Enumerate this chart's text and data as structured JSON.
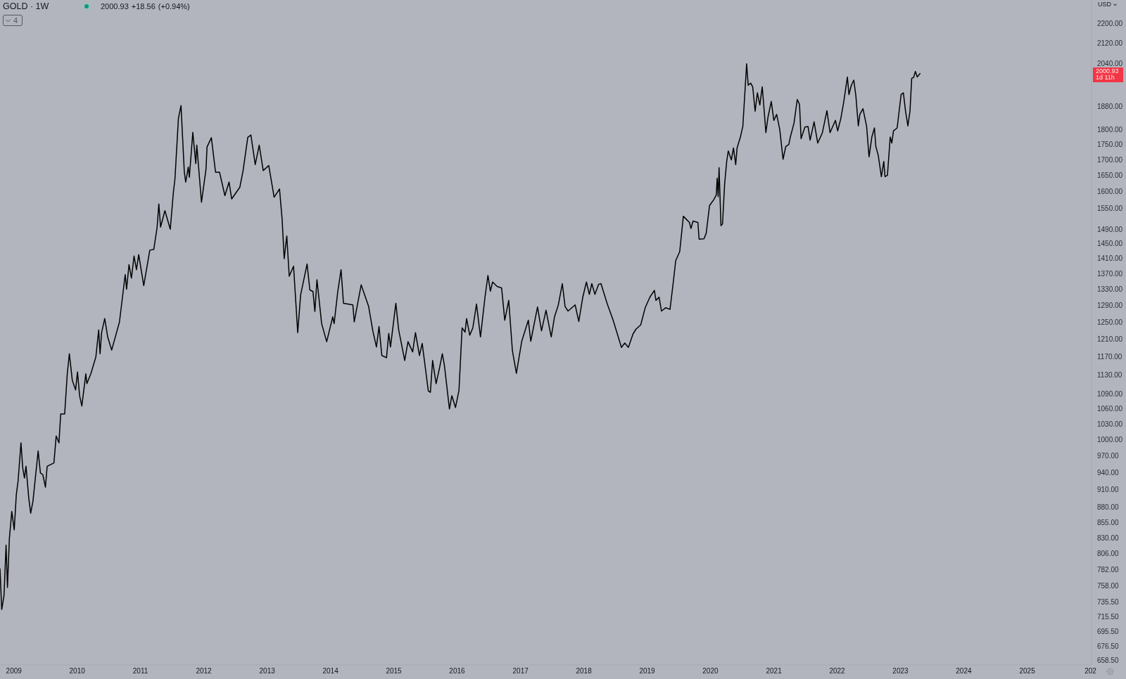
{
  "chart_data": {
    "type": "line",
    "title": "GOLD · 1W",
    "subtitle": "2000.93 +18.56 (+0.94%)",
    "ylabel": "USD",
    "annotations": [
      "2000.93",
      "1d 11h",
      "4"
    ],
    "log": true,
    "xlim": [
      "2008-10-13",
      "2026-01-07"
    ],
    "xticks": [
      "2009",
      "2010",
      "2011",
      "2012",
      "2013",
      "2014",
      "2015",
      "2016",
      "2017",
      "2018",
      "2019",
      "2020",
      "2021",
      "2022",
      "2023",
      "2024",
      "2025",
      {
        "value": "2026",
        "label": "202"
      }
    ],
    "ylim": [
      652.7,
      2300
    ],
    "yticks": [
      {
        "value": 658.5,
        "label": "658.50"
      },
      {
        "value": 676.5,
        "label": "676.50"
      },
      {
        "value": 695.5,
        "label": "695.50"
      },
      {
        "value": 715.5,
        "label": "715.50"
      },
      {
        "value": 735.5,
        "label": "735.50"
      },
      {
        "value": 758,
        "label": "758.00"
      },
      {
        "value": 782,
        "label": "782.00"
      },
      {
        "value": 806,
        "label": "806.00"
      },
      {
        "value": 830,
        "label": "830.00"
      },
      {
        "value": 855,
        "label": "855.00"
      },
      {
        "value": 880,
        "label": "880.00"
      },
      {
        "value": 910,
        "label": "910.00"
      },
      {
        "value": 940,
        "label": "940.00"
      },
      {
        "value": 970,
        "label": "970.00"
      },
      {
        "value": 1000,
        "label": "1000.00"
      },
      {
        "value": 1030,
        "label": "1030.00"
      },
      {
        "value": 1060,
        "label": "1060.00"
      },
      {
        "value": 1090,
        "label": "1090.00"
      },
      {
        "value": 1130,
        "label": "1130.00"
      },
      {
        "value": 1170,
        "label": "1170.00"
      },
      {
        "value": 1210,
        "label": "1210.00"
      },
      {
        "value": 1250,
        "label": "1250.00"
      },
      {
        "value": 1290,
        "label": "1290.00"
      },
      {
        "value": 1330,
        "label": "1330.00"
      },
      {
        "value": 1370,
        "label": "1370.00"
      },
      {
        "value": 1410,
        "label": "1410.00"
      },
      {
        "value": 1450,
        "label": "1450.00"
      },
      {
        "value": 1490,
        "label": "1490.00"
      },
      {
        "value": 1550,
        "label": "1550.00"
      },
      {
        "value": 1600,
        "label": "1600.00"
      },
      {
        "value": 1650,
        "label": "1650.00"
      },
      {
        "value": 1700,
        "label": "1700.00"
      },
      {
        "value": 1750,
        "label": "1750.00"
      },
      {
        "value": 1800,
        "label": "1800.00"
      },
      {
        "value": 1880,
        "label": "1880.00"
      },
      {
        "value": 2040,
        "label": "2040.00"
      },
      {
        "value": 2120,
        "label": "2120.00"
      },
      {
        "value": 2200,
        "label": "2200.00"
      }
    ],
    "x": [
      "2008-10-13",
      "2008-10-23",
      "2008-11-05",
      "2008-11-17",
      "2008-11-25",
      "2008-12-06",
      "2008-12-20",
      "2009-01-03",
      "2009-01-15",
      "2009-01-25",
      "2009-02-11",
      "2009-02-21",
      "2009-03-03",
      "2009-03-12",
      "2009-03-28",
      "2009-04-08",
      "2009-04-21",
      "2009-05-21",
      "2009-06-03",
      "2009-06-17",
      "2009-07-02",
      "2009-07-12",
      "2009-08-20",
      "2009-09-02",
      "2009-09-18",
      "2009-09-28",
      "2009-10-21",
      "2009-11-05",
      "2009-11-17",
      "2009-12-04",
      "2009-12-23",
      "2010-01-03",
      "2010-01-15",
      "2010-01-28",
      "2010-02-20",
      "2010-02-26",
      "2010-03-21",
      "2010-04-19",
      "2010-05-05",
      "2010-05-13",
      "2010-05-22",
      "2010-06-09",
      "2010-06-26",
      "2010-07-19",
      "2010-09-02",
      "2010-10-05",
      "2010-10-13",
      "2010-10-27",
      "2010-11-10",
      "2010-11-25",
      "2010-12-09",
      "2010-12-22",
      "2011-01-20",
      "2011-02-24",
      "2011-03-19",
      "2011-04-07",
      "2011-04-17",
      "2011-04-27",
      "2011-05-22",
      "2011-06-22",
      "2011-07-10",
      "2011-07-19",
      "2011-08-08",
      "2011-08-23",
      "2011-09-11",
      "2011-09-19",
      "2011-10-04",
      "2011-10-10",
      "2011-10-30",
      "2011-11-16",
      "2011-11-22",
      "2011-12-19",
      "2012-01-14",
      "2012-01-20",
      "2012-02-14",
      "2012-03-09",
      "2012-04-01",
      "2012-05-02",
      "2012-05-26",
      "2012-06-10",
      "2012-07-27",
      "2012-08-15",
      "2012-09-11",
      "2012-09-29",
      "2012-10-24",
      "2012-11-16",
      "2012-12-09",
      "2013-01-10",
      "2013-02-10",
      "2013-03-13",
      "2013-03-28",
      "2013-04-09",
      "2013-04-24",
      "2013-05-08",
      "2013-06-02",
      "2013-06-26",
      "2013-07-13",
      "2013-08-19",
      "2013-09-04",
      "2013-09-22",
      "2013-10-03",
      "2013-10-15",
      "2013-11-11",
      "2013-12-10",
      "2014-01-14",
      "2014-01-22",
      "2014-02-12",
      "2014-03-03",
      "2014-03-17",
      "2014-05-10",
      "2014-05-18",
      "2014-06-27",
      "2014-08-09",
      "2014-09-03",
      "2014-09-23",
      "2014-10-08",
      "2014-10-24",
      "2014-11-20",
      "2014-12-03",
      "2014-12-13",
      "2015-01-13",
      "2015-01-29",
      "2015-03-05",
      "2015-03-24",
      "2015-04-20",
      "2015-05-06",
      "2015-05-29",
      "2015-06-14",
      "2015-07-19",
      "2015-07-31",
      "2015-08-13",
      "2015-09-02",
      "2015-09-21",
      "2015-10-08",
      "2015-10-20",
      "2015-11-18",
      "2015-12-02",
      "2015-12-23",
      "2016-01-12",
      "2016-01-30",
      "2016-02-16",
      "2016-02-25",
      "2016-03-14",
      "2016-04-01",
      "2016-04-22",
      "2016-05-15",
      "2016-06-10",
      "2016-06-27",
      "2016-07-11",
      "2016-07-24",
      "2016-08-19",
      "2016-09-14",
      "2016-10-02",
      "2016-10-25",
      "2016-11-15",
      "2016-12-08",
      "2017-01-08",
      "2017-02-15",
      "2017-03-01",
      "2017-04-09",
      "2017-05-02",
      "2017-05-28",
      "2017-06-27",
      "2017-07-16",
      "2017-08-07",
      "2017-08-30",
      "2017-09-15",
      "2017-10-02",
      "2017-11-12",
      "2017-12-03",
      "2017-12-26",
      "2018-01-16",
      "2018-02-02",
      "2018-02-16",
      "2018-03-06",
      "2018-03-27",
      "2018-04-10",
      "2018-05-15",
      "2018-06-19",
      "2018-08-06",
      "2018-08-25",
      "2018-09-15",
      "2018-10-12",
      "2018-10-29",
      "2018-11-25",
      "2018-12-21",
      "2019-01-17",
      "2019-02-12",
      "2019-02-21",
      "2019-03-11",
      "2019-03-25",
      "2019-04-18",
      "2019-05-13",
      "2019-05-31",
      "2019-06-15",
      "2019-07-08",
      "2019-07-29",
      "2019-09-02",
      "2019-09-11",
      "2019-09-23",
      "2019-10-21",
      "2019-10-28",
      "2019-11-25",
      "2019-12-08",
      "2019-12-27",
      "2020-01-21",
      "2020-02-04",
      "2020-02-09",
      "2020-02-15",
      "2020-02-20",
      "2020-03-02",
      "2020-03-11",
      "2020-03-23",
      "2020-04-04",
      "2020-04-13",
      "2020-05-01",
      "2020-05-13",
      "2020-05-26",
      "2020-06-03",
      "2020-06-22",
      "2020-07-06",
      "2020-07-28",
      "2020-08-06",
      "2020-08-20",
      "2020-09-01",
      "2020-09-15",
      "2020-09-28",
      "2020-10-12",
      "2020-10-26",
      "2020-11-03",
      "2020-11-16",
      "2020-11-28",
      "2020-12-17",
      "2021-01-01",
      "2021-01-17",
      "2021-02-04",
      "2021-02-23",
      "2021-03-11",
      "2021-03-28",
      "2021-04-06",
      "2021-04-27",
      "2021-05-16",
      "2021-05-29",
      "2021-06-07",
      "2021-06-29",
      "2021-07-17",
      "2021-07-29",
      "2021-08-21",
      "2021-09-11",
      "2021-10-08",
      "2021-11-03",
      "2021-11-21",
      "2021-12-22",
      "2022-01-04",
      "2022-01-22",
      "2022-02-08",
      "2022-03-01",
      "2022-03-10",
      "2022-03-24",
      "2022-04-07",
      "2022-04-19",
      "2022-05-03",
      "2022-05-12",
      "2022-05-30",
      "2022-06-20",
      "2022-07-04",
      "2022-07-20",
      "2022-08-04",
      "2022-08-12",
      "2022-08-26",
      "2022-09-13",
      "2022-09-27",
      "2022-10-04",
      "2022-10-18",
      "2022-11-03",
      "2022-11-12",
      "2022-11-22",
      "2022-12-13",
      "2023-01-05",
      "2023-01-18",
      "2023-01-30",
      "2023-02-13",
      "2023-02-25",
      "2023-03-07",
      "2023-03-18",
      "2023-03-28",
      "2023-04-08",
      "2023-04-24"
    ],
    "series": [
      {
        "color": "#000000",
        "values": [
          783,
          725,
          744,
          819,
          756,
          829,
          873,
          843,
          901,
          924,
          994,
          948,
          930,
          951,
          895,
          870,
          890,
          979,
          939,
          936,
          914,
          951,
          957,
          1007,
          994,
          1050,
          1050,
          1133,
          1177,
          1119,
          1099,
          1137,
          1087,
          1066,
          1133,
          1112,
          1133,
          1170,
          1231,
          1177,
          1225,
          1258,
          1215,
          1185,
          1250,
          1367,
          1330,
          1393,
          1358,
          1416,
          1380,
          1420,
          1339,
          1432,
          1434,
          1495,
          1563,
          1496,
          1543,
          1490,
          1598,
          1639,
          1838,
          1883,
          1660,
          1629,
          1676,
          1644,
          1790,
          1687,
          1747,
          1568,
          1669,
          1741,
          1772,
          1660,
          1660,
          1588,
          1629,
          1578,
          1613,
          1665,
          1773,
          1781,
          1684,
          1747,
          1665,
          1681,
          1583,
          1608,
          1519,
          1409,
          1471,
          1363,
          1389,
          1225,
          1316,
          1395,
          1328,
          1324,
          1275,
          1354,
          1246,
          1204,
          1262,
          1246,
          1324,
          1380,
          1295,
          1291,
          1250,
          1341,
          1287,
          1227,
          1192,
          1239,
          1173,
          1168,
          1223,
          1192,
          1295,
          1232,
          1162,
          1204,
          1181,
          1225,
          1173,
          1200,
          1097,
          1094,
          1162,
          1112,
          1144,
          1177,
          1151,
          1060,
          1087,
          1063,
          1098,
          1236,
          1226,
          1258,
          1219,
          1236,
          1293,
          1215,
          1310,
          1365,
          1325,
          1348,
          1337,
          1333,
          1254,
          1302,
          1184,
          1134,
          1205,
          1254,
          1205,
          1286,
          1229,
          1278,
          1215,
          1262,
          1291,
          1344,
          1287,
          1276,
          1291,
          1251,
          1310,
          1348,
          1317,
          1344,
          1317,
          1342,
          1344,
          1295,
          1254,
          1191,
          1201,
          1191,
          1222,
          1233,
          1243,
          1284,
          1310,
          1327,
          1302,
          1310,
          1276,
          1284,
          1280,
          1344,
          1404,
          1428,
          1527,
          1509,
          1492,
          1513,
          1509,
          1462,
          1463,
          1479,
          1558,
          1576,
          1590,
          1641,
          1585,
          1674,
          1500,
          1505,
          1622,
          1694,
          1728,
          1699,
          1738,
          1684,
          1738,
          1774,
          1810,
          2038,
          1957,
          1965,
          1951,
          1863,
          1929,
          1885,
          1951,
          1890,
          1789,
          1842,
          1898,
          1831,
          1852,
          1800,
          1701,
          1743,
          1749,
          1774,
          1821,
          1905,
          1887,
          1769,
          1808,
          1810,
          1764,
          1826,
          1754,
          1789,
          1865,
          1789,
          1831,
          1795,
          1837,
          1896,
          1988,
          1923,
          1957,
          1976,
          1918,
          1812,
          1852,
          1872,
          1810,
          1709,
          1774,
          1805,
          1743,
          1714,
          1646,
          1694,
          1646,
          1650,
          1774,
          1754,
          1795,
          1805,
          1923,
          1929,
          1865,
          1812,
          1863,
          1983,
          1986,
          2009,
          1988,
          2000.93
        ]
      }
    ]
  }
}
